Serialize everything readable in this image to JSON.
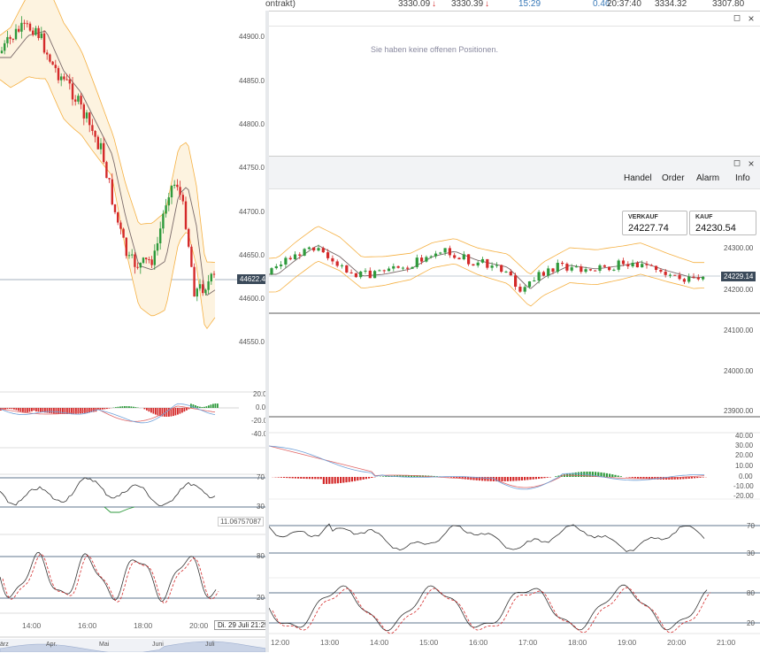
{
  "top_row": {
    "label": "ontrakt)",
    "v1": "3330.09",
    "v2": "3330.39",
    "time": "15:29",
    "change": "0.46",
    "clock": "20:37:40",
    "high": "3334.32",
    "low": "3307.80",
    "down_arrow": "↓"
  },
  "positions_panel": {
    "message": "Sie haben keine offenen Positionen."
  },
  "window_buttons": {
    "restore": "◻",
    "close": "×"
  },
  "chart_window": {
    "menu": [
      "Handel",
      "Order",
      "Alarm",
      "Info"
    ],
    "sell": {
      "label": "VERKAUF",
      "value": "24227.74"
    },
    "buy": {
      "label": "KAUF",
      "value": "24230.54"
    },
    "price_tag": "24229.14",
    "price_axis": [
      "24300.00",
      "24200.00",
      "24100.00",
      "24000.00",
      "23900.00"
    ],
    "macd_axis": [
      "40.00",
      "30.00",
      "20.00",
      "10.00",
      "0.00",
      "-10.00",
      "-20.00"
    ],
    "rsi_levels": [
      "70",
      "30"
    ],
    "stoch_levels": [
      "80",
      "20"
    ],
    "time_axis": [
      "12:00",
      "13:00",
      "14:00",
      "15:00",
      "16:00",
      "17:00",
      "18:00",
      "19:00",
      "20:00",
      "21:00"
    ]
  },
  "left_chart": {
    "price_axis": [
      "44900.0",
      "44850.0",
      "44800.0",
      "44750.0",
      "44700.0",
      "44650.0",
      "44600.0",
      "44550.0"
    ],
    "price_tag": "44622.4",
    "macd_axis": [
      "20.0",
      "0.0",
      "-20.0",
      "-40.0"
    ],
    "rsi_levels": [
      "70",
      "30"
    ],
    "indicator_value": "11.06757087",
    "stoch_levels": [
      "80",
      "20"
    ],
    "time_axis": [
      "14:00",
      "16:00",
      "18:00",
      "20:00"
    ],
    "date_box": "Di. 29 Juli 21:25",
    "nav_months": [
      "ärz",
      "Apr.",
      "Mai",
      "Juni",
      "Juli"
    ]
  },
  "colors": {
    "up": "#2e9a3c",
    "down": "#d42a2a",
    "band": "#f5b042",
    "band_fill": "#fdf3e0",
    "ma": "#7a6a6a"
  }
}
